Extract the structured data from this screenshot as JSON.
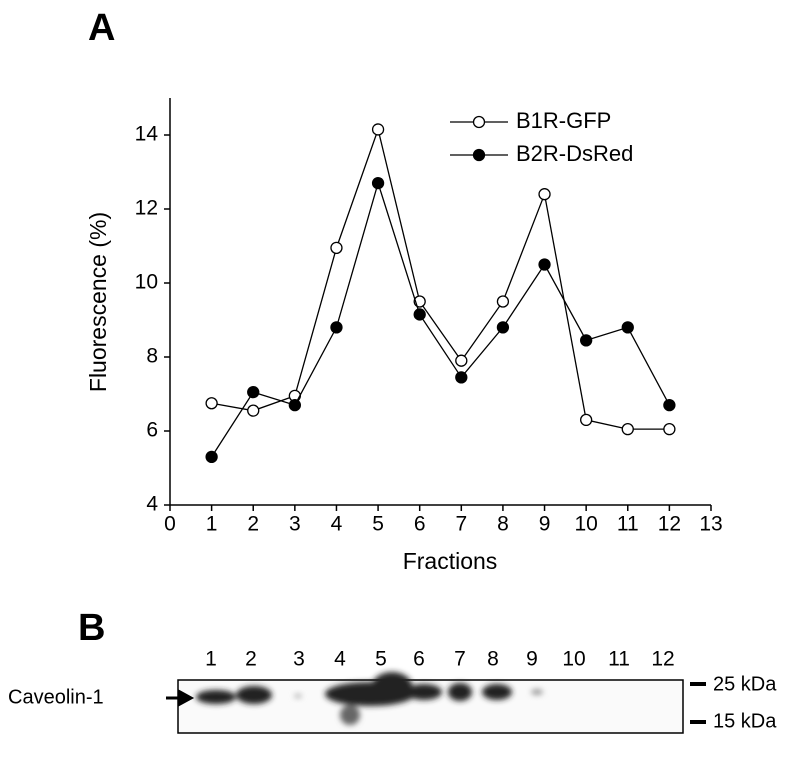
{
  "panel_labels": [
    "A",
    "B"
  ],
  "chart_data": {
    "type": "line",
    "x_label": "Fractions",
    "y_label": "Fluorescence (%)",
    "x": [
      1,
      2,
      3,
      4,
      5,
      6,
      7,
      8,
      9,
      10,
      11,
      12
    ],
    "series": [
      {
        "name": "B1R-GFP",
        "color": "#000000",
        "marker": "open-circle",
        "values": [
          6.75,
          6.55,
          6.95,
          10.95,
          14.15,
          9.5,
          7.9,
          9.5,
          12.4,
          6.3,
          6.05,
          6.05
        ]
      },
      {
        "name": "B2R-DsRed",
        "color": "#000000",
        "marker": "filled-circle",
        "values": [
          5.3,
          7.05,
          6.7,
          8.8,
          12.7,
          9.15,
          7.45,
          8.8,
          10.5,
          8.45,
          8.8,
          6.7
        ]
      }
    ],
    "xlim": [
      0,
      13
    ],
    "xticks": [
      0,
      1,
      2,
      3,
      4,
      5,
      6,
      7,
      8,
      9,
      10,
      11,
      12,
      13
    ],
    "ylim": [
      4,
      15
    ],
    "yticks": [
      4,
      6,
      8,
      10,
      12,
      14
    ],
    "grid": false,
    "legend": "upper right"
  },
  "blot": {
    "lanes": [
      "1",
      "2",
      "3",
      "4",
      "5",
      "6",
      "7",
      "8",
      "9",
      "10",
      "11",
      "12"
    ],
    "markers": [
      "25 kDa",
      "15 kDa"
    ],
    "protein": "Caveolin-1"
  }
}
